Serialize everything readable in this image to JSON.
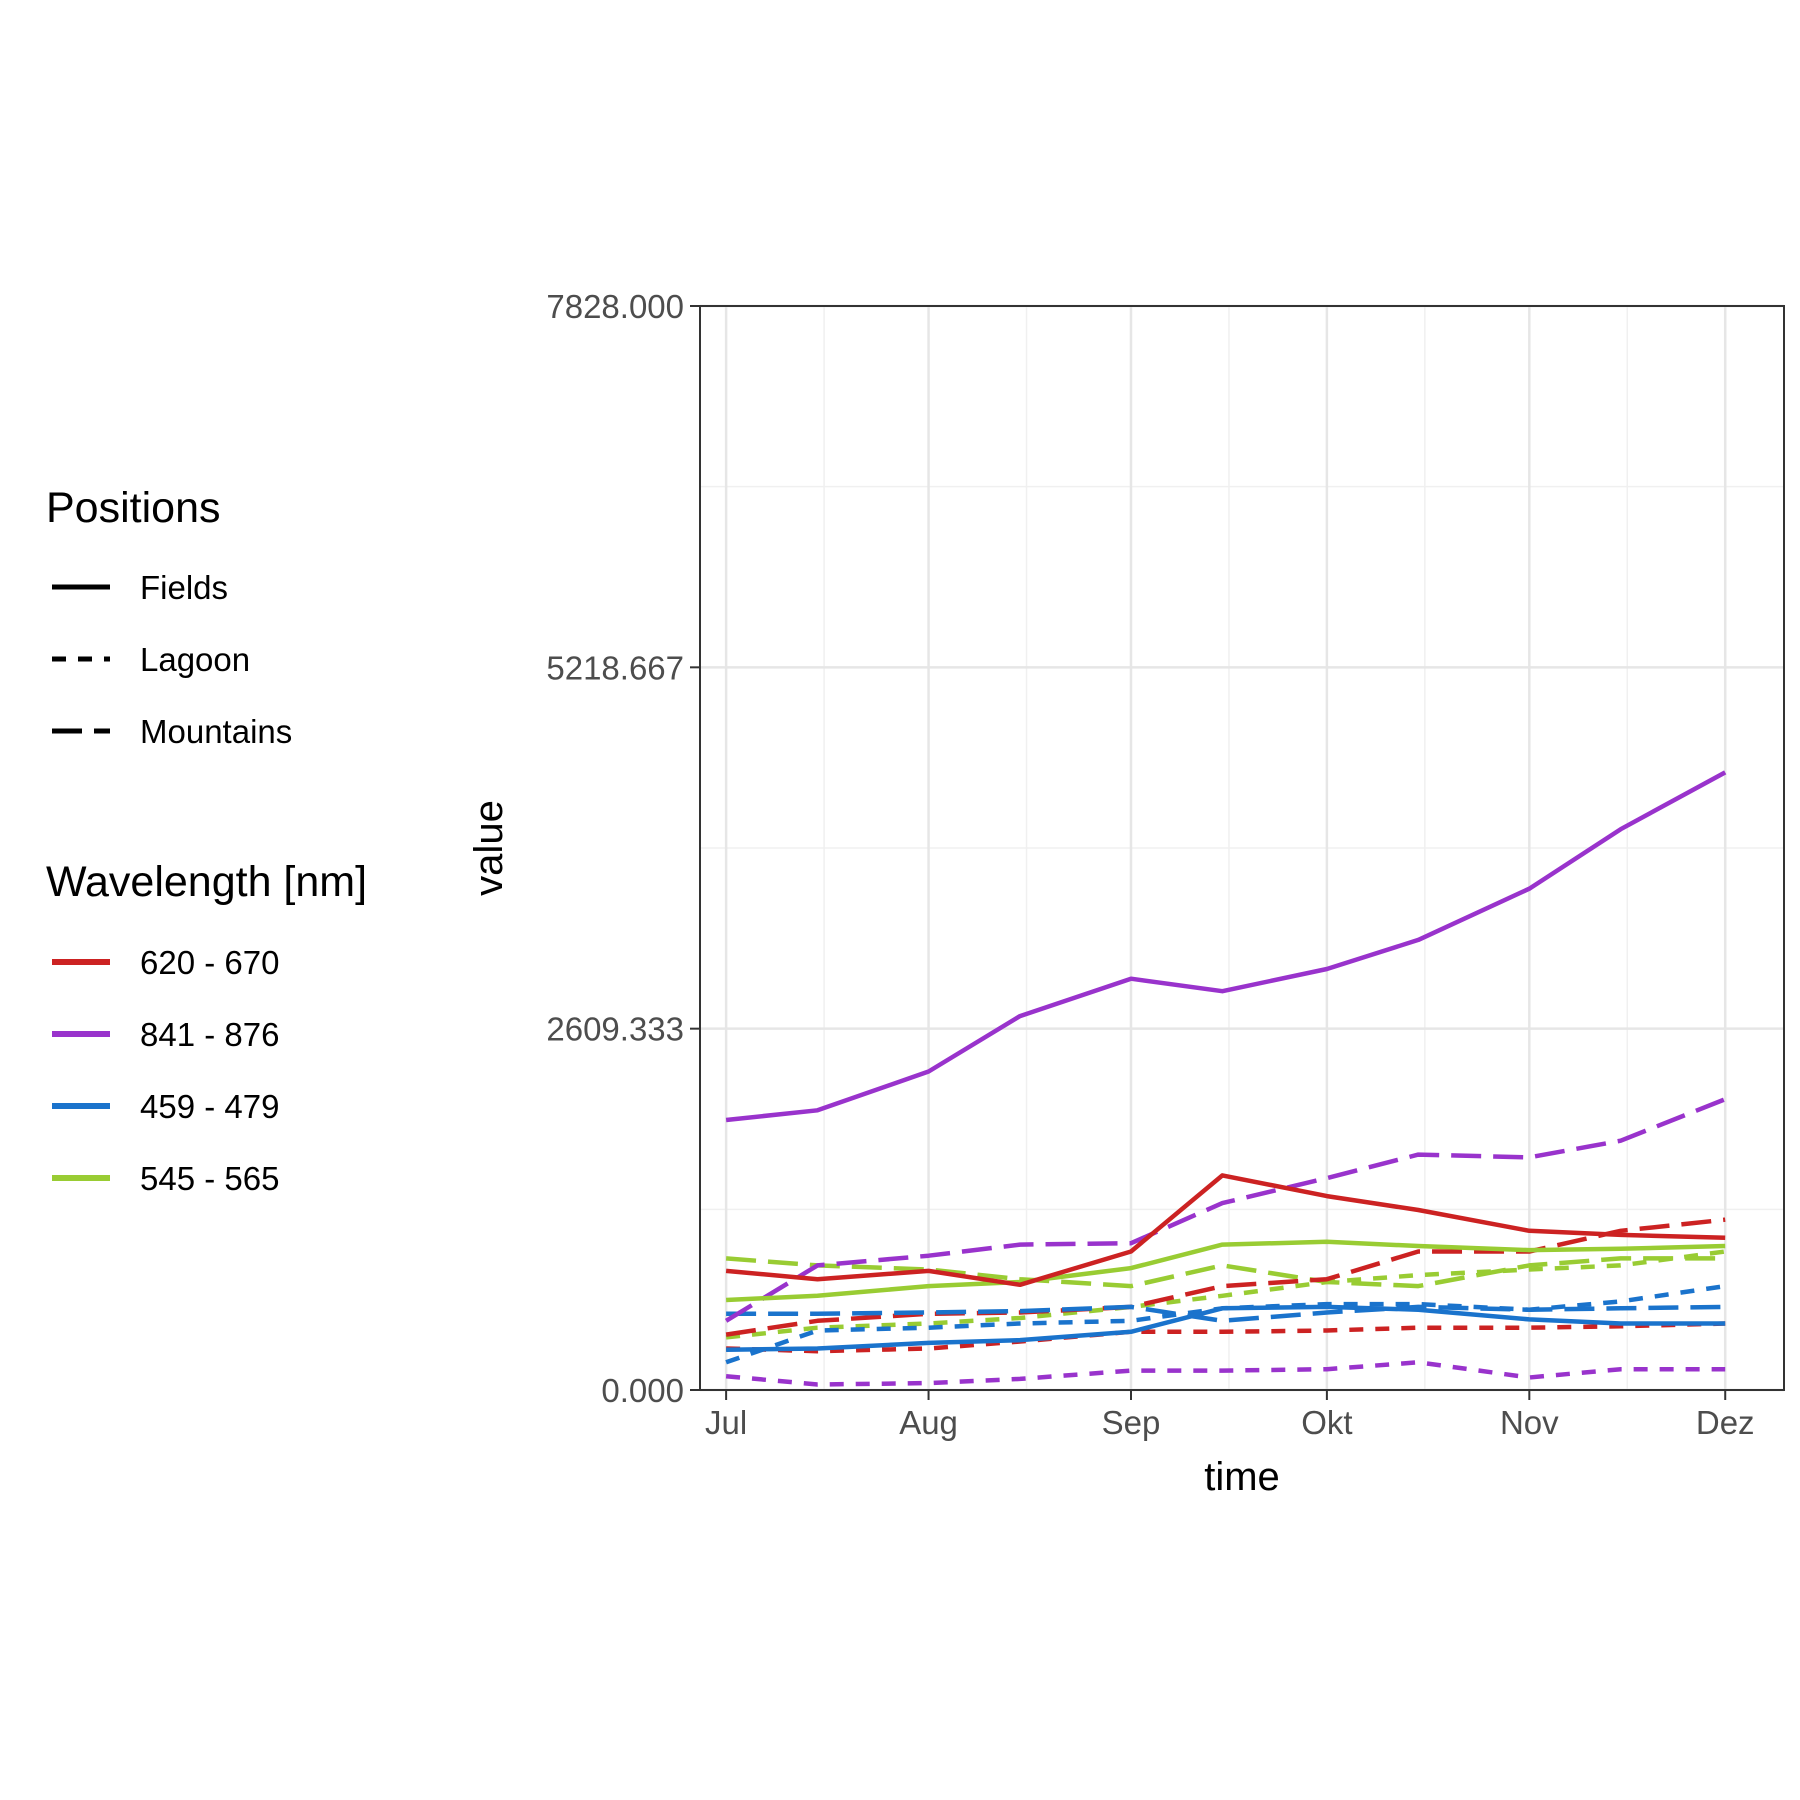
{
  "chart_data": {
    "type": "line",
    "title": "",
    "xlabel": "time",
    "ylabel": "value",
    "x_dates": [
      "2021-07-01",
      "2021-07-15",
      "2021-08-01",
      "2021-08-15",
      "2021-09-01",
      "2021-09-15",
      "2021-10-01",
      "2021-10-15",
      "2021-11-01",
      "2021-11-15",
      "2021-12-01"
    ],
    "xlim": [
      "2021-06-27",
      "2021-12-10"
    ],
    "x_ticks": [
      {
        "date": "2021-07-01",
        "label": "Jul"
      },
      {
        "date": "2021-08-01",
        "label": "Aug"
      },
      {
        "date": "2021-09-01",
        "label": "Sep"
      },
      {
        "date": "2021-10-01",
        "label": "Okt"
      },
      {
        "date": "2021-11-01",
        "label": "Nov"
      },
      {
        "date": "2021-12-01",
        "label": "Dez"
      }
    ],
    "ylim": [
      0,
      7828
    ],
    "y_ticks": [
      {
        "value": 0,
        "label": "0.000"
      },
      {
        "value": 2609.333,
        "label": "2609.333"
      },
      {
        "value": 5218.667,
        "label": "5218.667"
      },
      {
        "value": 7828,
        "label": "7828.000"
      }
    ],
    "grid": true,
    "legend_position": "left",
    "legends": [
      {
        "title": "Positions",
        "entries": [
          {
            "label": "Fields",
            "linetype": "solid"
          },
          {
            "label": "Lagoon",
            "linetype": "dashed"
          },
          {
            "label": "Mountains",
            "linetype": "longdash"
          }
        ]
      },
      {
        "title": "Wavelength [nm]",
        "entries": [
          {
            "label": "620 - 670",
            "color": "#cc2222"
          },
          {
            "label": "841 - 876",
            "color": "#9933cc"
          },
          {
            "label": "459 - 479",
            "color": "#1a73cc"
          },
          {
            "label": "545 - 565",
            "color": "#99cc33"
          }
        ]
      }
    ],
    "series": [
      {
        "position": "Fields",
        "wavelength": "841 - 876",
        "color": "#9933cc",
        "linetype": "solid",
        "values": [
          1950,
          2020,
          2300,
          2700,
          2970,
          2880,
          3040,
          3250,
          3620,
          4050,
          4460
        ]
      },
      {
        "position": "Lagoon",
        "wavelength": "841 - 876",
        "color": "#9933cc",
        "linetype": "dashed",
        "values": [
          100,
          40,
          50,
          80,
          140,
          140,
          150,
          200,
          90,
          150,
          150
        ]
      },
      {
        "position": "Mountains",
        "wavelength": "841 - 876",
        "color": "#9933cc",
        "linetype": "longdash",
        "values": [
          500,
          900,
          970,
          1050,
          1060,
          1350,
          1530,
          1700,
          1680,
          1800,
          2100
        ]
      },
      {
        "position": "Fields",
        "wavelength": "620 - 670",
        "color": "#cc2222",
        "linetype": "solid",
        "values": [
          860,
          800,
          860,
          760,
          1000,
          1550,
          1400,
          1300,
          1150,
          1120,
          1100
        ]
      },
      {
        "position": "Lagoon",
        "wavelength": "620 - 670",
        "color": "#cc2222",
        "linetype": "dashed",
        "values": [
          300,
          280,
          300,
          350,
          420,
          420,
          430,
          450,
          450,
          460,
          480
        ]
      },
      {
        "position": "Mountains",
        "wavelength": "620 - 670",
        "color": "#cc2222",
        "linetype": "longdash",
        "values": [
          400,
          500,
          550,
          560,
          600,
          750,
          800,
          1000,
          1000,
          1150,
          1230
        ]
      },
      {
        "position": "Fields",
        "wavelength": "545 - 565",
        "color": "#99cc33",
        "linetype": "solid",
        "values": [
          650,
          680,
          750,
          780,
          880,
          1050,
          1070,
          1040,
          1010,
          1020,
          1040
        ]
      },
      {
        "position": "Lagoon",
        "wavelength": "545 - 565",
        "color": "#99cc33",
        "linetype": "dashed",
        "values": [
          380,
          450,
          480,
          520,
          600,
          680,
          780,
          830,
          870,
          900,
          1000
        ]
      },
      {
        "position": "Mountains",
        "wavelength": "545 - 565",
        "color": "#99cc33",
        "linetype": "longdash",
        "values": [
          950,
          900,
          870,
          800,
          750,
          900,
          780,
          750,
          900,
          950,
          950
        ]
      },
      {
        "position": "Fields",
        "wavelength": "459 - 479",
        "color": "#1a73cc",
        "linetype": "solid",
        "values": [
          290,
          300,
          340,
          360,
          420,
          590,
          600,
          580,
          510,
          480,
          480
        ]
      },
      {
        "position": "Lagoon",
        "wavelength": "459 - 479",
        "color": "#1a73cc",
        "linetype": "dashed",
        "values": [
          200,
          430,
          450,
          480,
          500,
          590,
          620,
          620,
          580,
          640,
          750
        ]
      },
      {
        "position": "Mountains",
        "wavelength": "459 - 479",
        "color": "#1a73cc",
        "linetype": "longdash",
        "values": [
          550,
          550,
          560,
          570,
          600,
          500,
          560,
          600,
          580,
          590,
          600
        ]
      }
    ]
  }
}
